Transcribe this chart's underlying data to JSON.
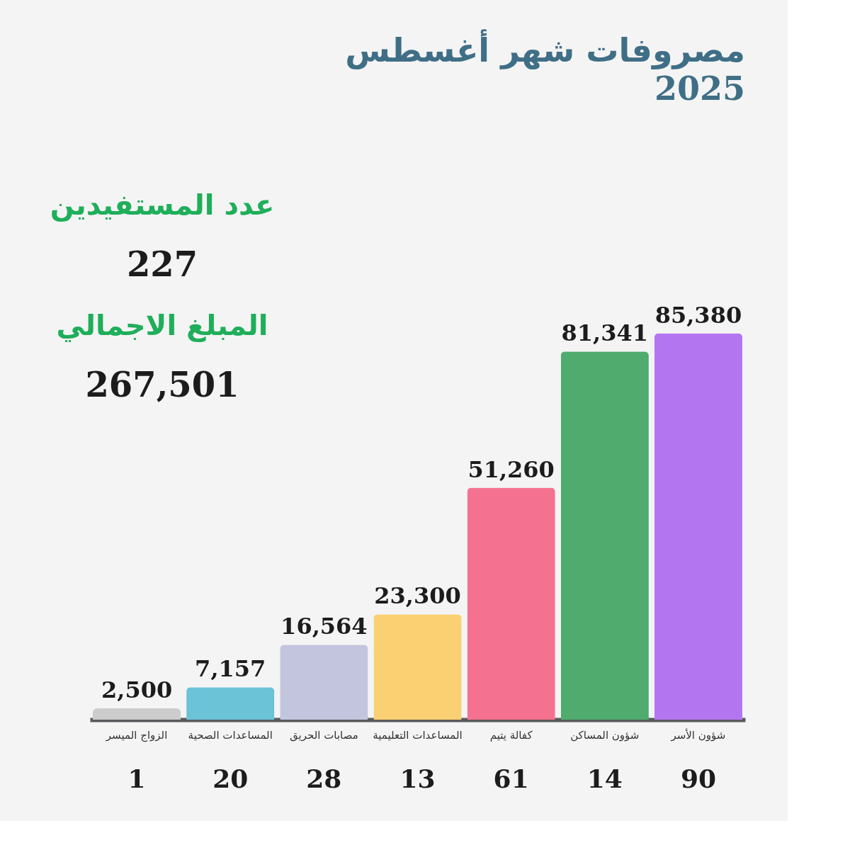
{
  "chart_data": {
    "type": "bar",
    "title": "مصروفات شهر أغسطس",
    "subtitle": "2025",
    "categories": [
      "الزواج الميسر",
      "المساعدات الصحية",
      "مصابات الحريق",
      "المساعدات التعليمية",
      "كفالة يتيم",
      "شؤون المساكن",
      "شؤون الأسر"
    ],
    "values": [
      2500,
      7157,
      16564,
      23300,
      51260,
      81341,
      85380
    ],
    "value_labels": [
      "2,500",
      "7,157",
      "16,564",
      "23,300",
      "51,260",
      "81,341",
      "85,380"
    ],
    "colors": [
      "#cccccc",
      "#6ac3d6",
      "#c3c4de",
      "#fbd073",
      "#f4728f",
      "#4fab6e",
      "#b476f0"
    ],
    "annotations": [
      "عدد المستفيدين",
      "227",
      "المبلغ الاجمالي",
      "267,501",
      "1",
      "20",
      "28",
      "13",
      "61",
      "14",
      "90"
    ]
  }
}
